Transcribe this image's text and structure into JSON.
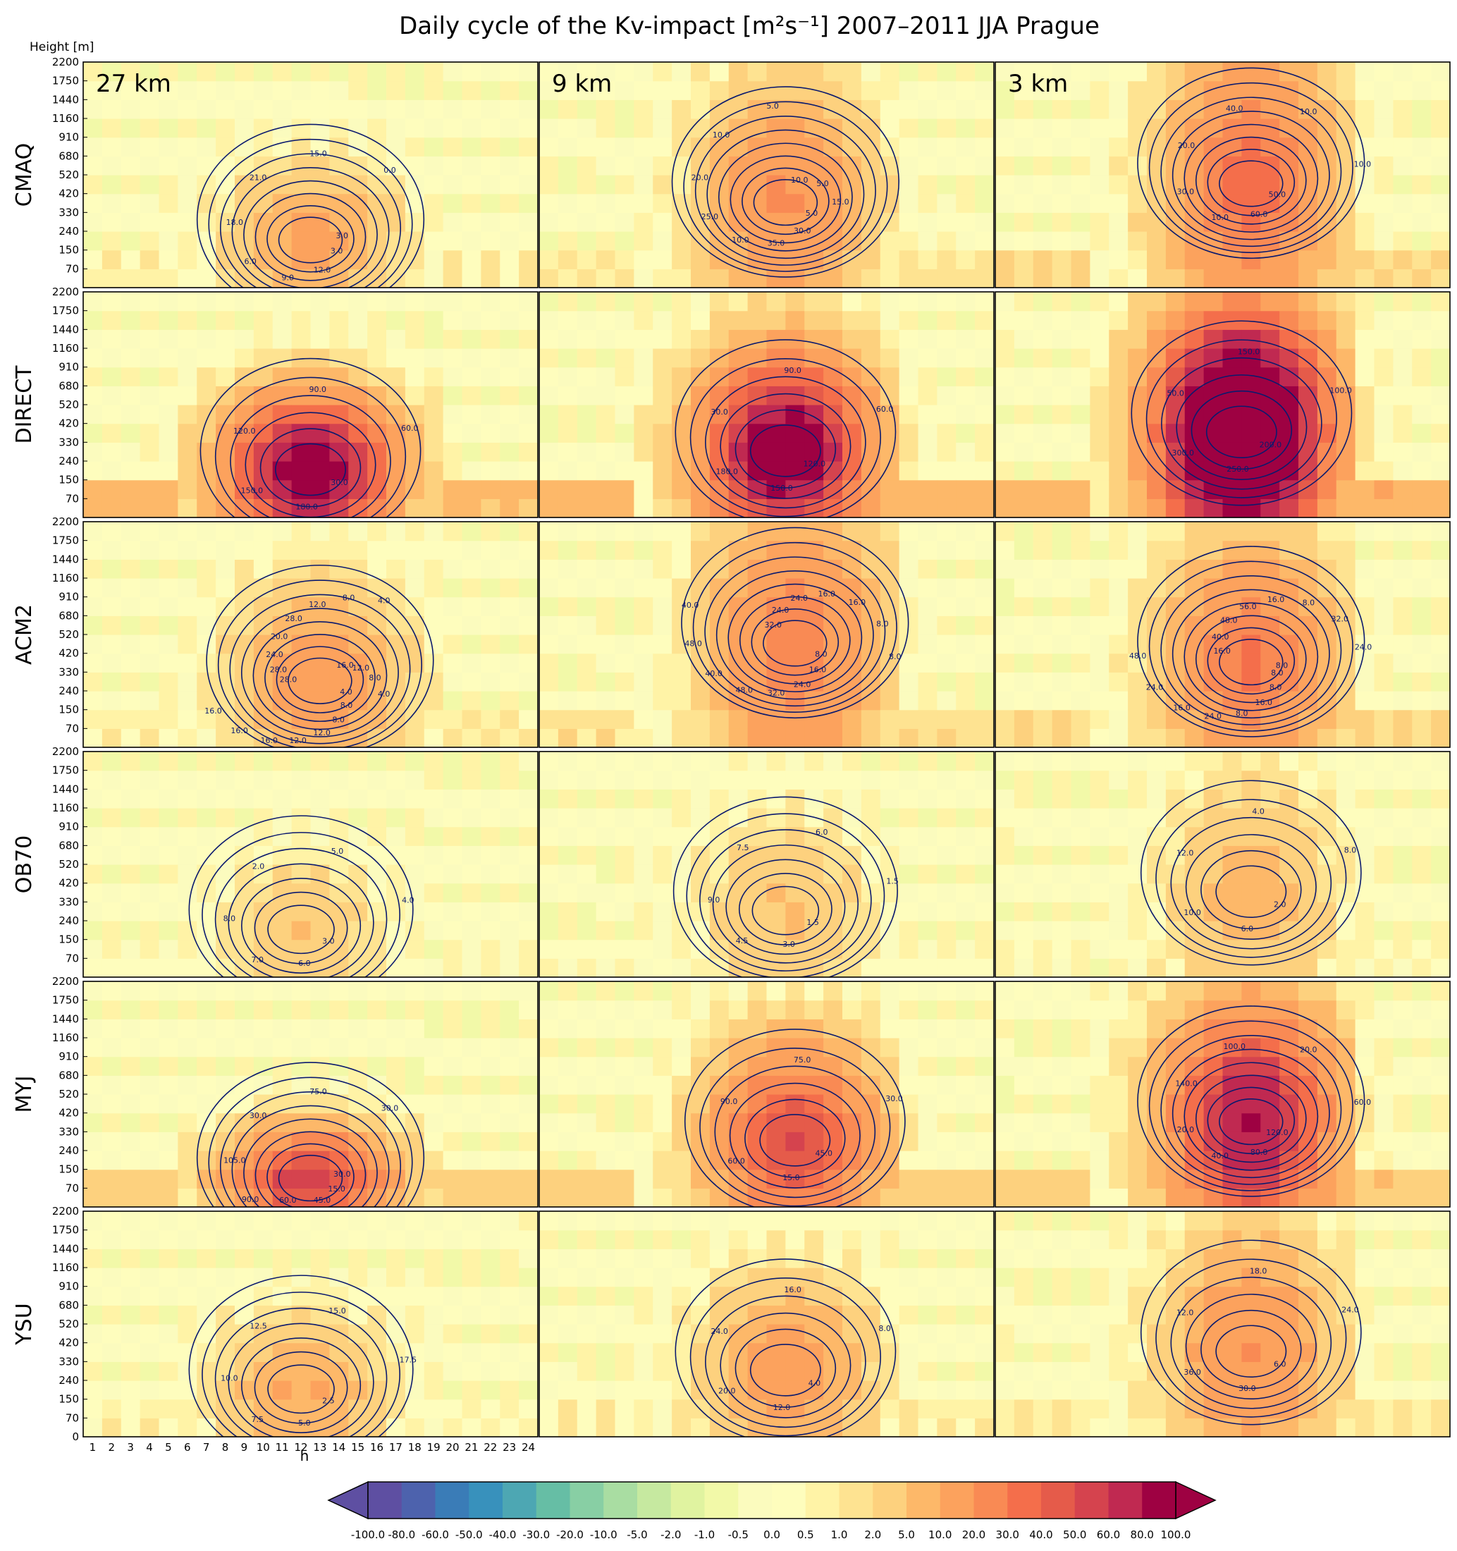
{
  "chart_data": {
    "type": "heatmap",
    "title": "Daily cycle of the Kv-impact [m²s⁻¹]  2007–2011 JJA  Prague",
    "y_axis_label": "Height [m]",
    "x_axis_label": "h",
    "x_ticks": [
      "1",
      "2",
      "3",
      "4",
      "5",
      "6",
      "7",
      "8",
      "9",
      "10",
      "11",
      "12",
      "13",
      "14",
      "15",
      "16",
      "17",
      "18",
      "19",
      "20",
      "21",
      "22",
      "23",
      "24"
    ],
    "y_ticks": [
      "0",
      "70",
      "150",
      "240",
      "330",
      "420",
      "520",
      "680",
      "910",
      "1160",
      "1440",
      "1750",
      "2200"
    ],
    "columns": [
      "27 km",
      "9 km",
      "3 km"
    ],
    "rows": [
      "CMAQ",
      "DIRECT",
      "ACM2",
      "OB70",
      "MYJ",
      "YSU"
    ],
    "colorbar": {
      "levels": [
        "-100.0",
        "-80.0",
        "-60.0",
        "-50.0",
        "-40.0",
        "-30.0",
        "-20.0",
        "-10.0",
        "-5.0",
        "-2.0",
        "-1.0",
        "-0.5",
        "0.0",
        "0.5",
        "1.0",
        "2.0",
        "5.0",
        "10.0",
        "20.0",
        "30.0",
        "40.0",
        "50.0",
        "60.0",
        "80.0",
        "100.0"
      ],
      "colors": [
        "#5e4fa2",
        "#4d62ad",
        "#3a7cb7",
        "#3891bc",
        "#4da7b3",
        "#66bea5",
        "#88cfa4",
        "#a9dda2",
        "#c6e9a0",
        "#e0f3a0",
        "#f2f9a8",
        "#fbfbbe",
        "#fefdbd",
        "#fff3a6",
        "#fee391",
        "#fdd17e",
        "#fdb869",
        "#fca25d",
        "#f98a54",
        "#f46e4b",
        "#e55b4a",
        "#d5434e",
        "#c02951",
        "#9e0142"
      ],
      "extend": "both"
    },
    "panels": [
      {
        "row": "CMAQ",
        "col": "27 km",
        "peak": 22,
        "peak_hour": 12.5,
        "peak_level": 2,
        "labels": [
          "3.0",
          "12.0",
          "9.0",
          "6.0",
          "18.0",
          "21.0",
          "15.0",
          "0.0",
          "3.0"
        ]
      },
      {
        "row": "CMAQ",
        "col": "9 km",
        "peak": 38,
        "peak_hour": 13.5,
        "peak_level": 4,
        "labels": [
          "5.0",
          "30.0",
          "35.0",
          "10.0",
          "25.0",
          "20.0",
          "10.0",
          "5.0",
          "10.0",
          "5.0",
          "15.0"
        ]
      },
      {
        "row": "CMAQ",
        "col": "3 km",
        "peak": 62,
        "peak_hour": 14,
        "peak_level": 5,
        "labels": [
          "50.0",
          "60.0",
          "10.0",
          "30.0",
          "20.0",
          "40.0",
          "10.0",
          "10.0"
        ]
      },
      {
        "row": "DIRECT",
        "col": "27 km",
        "peak": 185,
        "peak_hour": 12.5,
        "peak_level": 2,
        "labels": [
          "30.0",
          "180.0",
          "150.0",
          "120.0",
          "90.0",
          "60.0"
        ]
      },
      {
        "row": "DIRECT",
        "col": "9 km",
        "peak": 190,
        "peak_hour": 13.5,
        "peak_level": 3,
        "labels": [
          "120.0",
          "150.0",
          "180.0",
          "30.0",
          "90.0",
          "60.0"
        ]
      },
      {
        "row": "DIRECT",
        "col": "3 km",
        "peak": 310,
        "peak_hour": 13.5,
        "peak_level": 4,
        "labels": [
          "200.0",
          "250.0",
          "300.0",
          "50.0",
          "150.0",
          "100.0"
        ]
      },
      {
        "row": "ACM2",
        "col": "27 km",
        "peak": 30,
        "peak_hour": 13,
        "peak_level": 3,
        "labels": [
          "4.0",
          "8.0",
          "8.0",
          "12.0",
          "12.0",
          "16.0",
          "16.0",
          "16.0",
          "28.0",
          "28.0",
          "24.0",
          "20.0",
          "28.0",
          "12.0",
          "8.0",
          "4.0",
          "16.0",
          "12.0",
          "8.0",
          "4.0"
        ]
      },
      {
        "row": "ACM2",
        "col": "9 km",
        "peak": 50,
        "peak_hour": 14,
        "peak_level": 5,
        "labels": [
          "8.0",
          "16.0",
          "24.0",
          "32.0",
          "48.0",
          "40.0",
          "48.0",
          "40.0",
          "32.0",
          "24.0",
          "24.0",
          "16.0",
          "16.0",
          "8.0",
          "8.0"
        ]
      },
      {
        "row": "ACM2",
        "col": "3 km",
        "peak": 58,
        "peak_hour": 14,
        "peak_level": 4,
        "labels": [
          "8.0",
          "8.0",
          "16.0",
          "8.0",
          "24.0",
          "16.0",
          "24.0",
          "48.0",
          "16.0",
          "40.0",
          "48.0",
          "56.0",
          "16.0",
          "8.0",
          "32.0",
          "24.0",
          "8.0"
        ]
      },
      {
        "row": "OB70",
        "col": "27 km",
        "peak": 8.5,
        "peak_hour": 12,
        "peak_level": 2,
        "labels": [
          "3.0",
          "6.0",
          "7.0",
          "8.0",
          "2.0",
          "5.0",
          "4.0"
        ]
      },
      {
        "row": "OB70",
        "col": "9 km",
        "peak": 9.5,
        "peak_hour": 13.5,
        "peak_level": 3,
        "labels": [
          "1.5",
          "3.0",
          "4.5",
          "9.0",
          "7.5",
          "6.0",
          "1.5"
        ]
      },
      {
        "row": "OB70",
        "col": "3 km",
        "peak": 13,
        "peak_hour": 14,
        "peak_level": 4,
        "labels": [
          "2.0",
          "6.0",
          "10.0",
          "12.0",
          "4.0",
          "8.0"
        ]
      },
      {
        "row": "MYJ",
        "col": "27 km",
        "peak": 110,
        "peak_hour": 12.5,
        "peak_level": 1,
        "labels": [
          "15.0",
          "45.0",
          "60.0",
          "90.0",
          "105.0",
          "30.0",
          "75.0",
          "30.0",
          "30.0"
        ]
      },
      {
        "row": "MYJ",
        "col": "9 km",
        "peak": 95,
        "peak_hour": 14,
        "peak_level": 3,
        "labels": [
          "45.0",
          "15.0",
          "60.0",
          "90.0",
          "75.0",
          "30.0"
        ]
      },
      {
        "row": "MYJ",
        "col": "3 km",
        "peak": 145,
        "peak_hour": 14,
        "peak_level": 4,
        "labels": [
          "120.0",
          "80.0",
          "40.0",
          "20.0",
          "140.0",
          "100.0",
          "20.0",
          "60.0"
        ]
      },
      {
        "row": "YSU",
        "col": "27 km",
        "peak": 19,
        "peak_hour": 12,
        "peak_level": 2,
        "labels": [
          "2.5",
          "5.0",
          "7.5",
          "10.0",
          "12.5",
          "15.0",
          "17.5"
        ]
      },
      {
        "row": "YSU",
        "col": "9 km",
        "peak": 26,
        "peak_hour": 13.5,
        "peak_level": 3,
        "labels": [
          "4.0",
          "12.0",
          "20.0",
          "24.0",
          "16.0",
          "8.0"
        ]
      },
      {
        "row": "YSU",
        "col": "3 km",
        "peak": 38,
        "peak_hour": 14,
        "peak_level": 4,
        "labels": [
          "6.0",
          "30.0",
          "36.0",
          "12.0",
          "18.0",
          "24.0"
        ]
      }
    ]
  }
}
